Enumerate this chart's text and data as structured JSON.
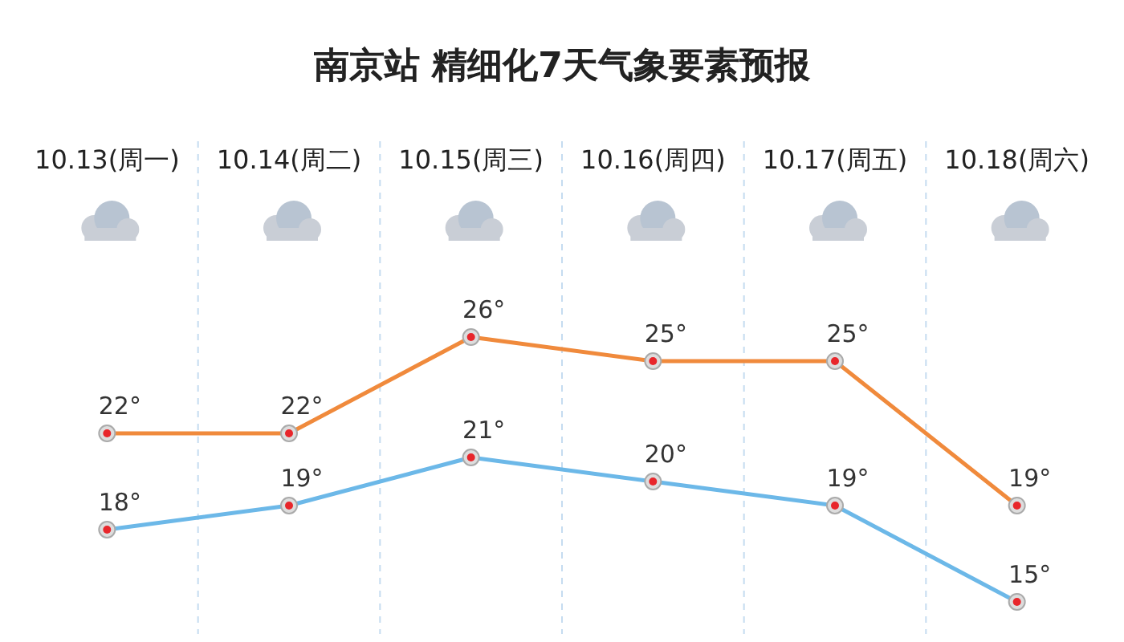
{
  "chart_data": {
    "type": "line",
    "title": "南京站 精细化7天气象要素预报",
    "categories": [
      "10.13(周一)",
      "10.14(周二)",
      "10.15(周三)",
      "10.16(周四)",
      "10.17(周五)",
      "10.18(周六)"
    ],
    "series": [
      {
        "color": "#f08a3c",
        "values": [
          22,
          22,
          26,
          25,
          25,
          19
        ],
        "value_labels": [
          "22°",
          "22°",
          "26°",
          "25°",
          "25°",
          "19°"
        ]
      },
      {
        "color": "#6cb8e8",
        "values": [
          18,
          19,
          21,
          20,
          19,
          15
        ],
        "value_labels": [
          "18°",
          "19°",
          "21°",
          "20°",
          "19°",
          "15°"
        ]
      }
    ],
    "tick_labels": "x",
    "grid": "x",
    "marker": "circle"
  }
}
